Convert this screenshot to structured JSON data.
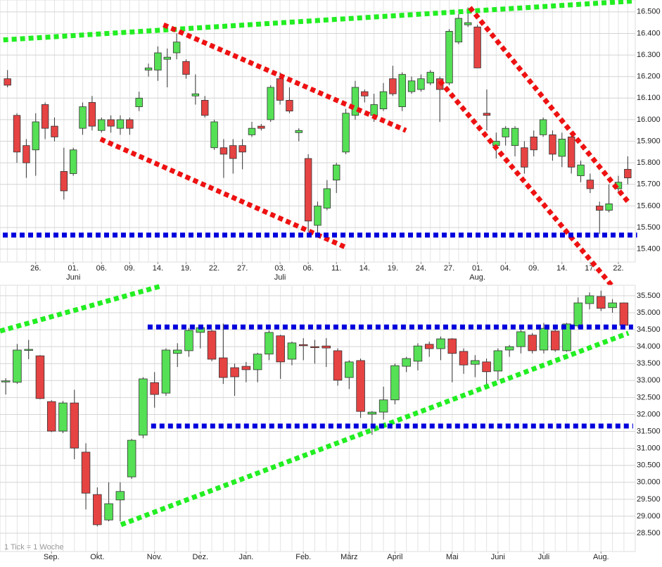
{
  "chart_data": [
    {
      "type": "candlestick",
      "grid": true,
      "up_color": "#55e055",
      "down_color": "#e64343",
      "categories": [
        null,
        null,
        null,
        "26.",
        null,
        null,
        null,
        "01.",
        null,
        null,
        "06.",
        null,
        null,
        "09.",
        null,
        null,
        "14.",
        null,
        null,
        "19.",
        null,
        null,
        "22.",
        null,
        null,
        "27.",
        null,
        null,
        null,
        "03.",
        null,
        null,
        "06.",
        null,
        null,
        "11.",
        null,
        null,
        "14.",
        null,
        null,
        "19.",
        null,
        null,
        "24.",
        null,
        null,
        "27.",
        null,
        null,
        "01.",
        null,
        null,
        "04.",
        null,
        null,
        "09.",
        null,
        null,
        "14.",
        null,
        null,
        "17.",
        null,
        null,
        "22.",
        null
      ],
      "months": [
        null,
        null,
        null,
        null,
        null,
        null,
        null,
        "Juni",
        null,
        null,
        null,
        null,
        null,
        null,
        null,
        null,
        null,
        null,
        null,
        null,
        null,
        null,
        null,
        null,
        null,
        null,
        null,
        null,
        null,
        "Juli",
        null,
        null,
        null,
        null,
        null,
        null,
        null,
        null,
        null,
        null,
        null,
        null,
        null,
        null,
        null,
        null,
        null,
        null,
        null,
        null,
        "Aug.",
        null,
        null,
        null,
        null,
        null,
        null,
        null,
        null,
        null,
        null,
        null,
        null,
        null,
        null,
        null,
        null
      ],
      "open": [
        16.19,
        16.02,
        15.88,
        15.86,
        16.07,
        15.97,
        15.76,
        15.75,
        15.96,
        16.08,
        15.95,
        16.0,
        15.96,
        16.0,
        16.06,
        16.23,
        16.23,
        16.28,
        16.31,
        16.27,
        16.11,
        16.09,
        15.87,
        15.87,
        15.88,
        15.88,
        15.93,
        15.97,
        16.0,
        16.19,
        16.09,
        15.94,
        15.82,
        15.51,
        15.59,
        15.72,
        15.85,
        16.02,
        16.13,
        16.02,
        16.05,
        16.19,
        16.06,
        16.13,
        16.14,
        16.17,
        16.19,
        16.17,
        16.36,
        16.44,
        16.43,
        16.03,
        15.88,
        15.92,
        15.88,
        15.87,
        15.92,
        15.93,
        15.93,
        15.83,
        15.92,
        15.74,
        15.72,
        15.6,
        15.58,
        15.68,
        15.77
      ],
      "high": [
        16.23,
        16.03,
        15.91,
        16.03,
        16.08,
        16.01,
        15.87,
        15.87,
        16.08,
        16.11,
        16.01,
        16.02,
        16.02,
        16.01,
        16.13,
        16.26,
        16.34,
        16.33,
        16.4,
        16.28,
        16.21,
        16.11,
        16.0,
        15.91,
        15.91,
        15.91,
        15.99,
        15.98,
        16.16,
        16.22,
        16.15,
        15.96,
        15.84,
        15.62,
        15.72,
        15.8,
        16.05,
        16.18,
        16.14,
        16.12,
        16.17,
        16.25,
        16.22,
        16.2,
        16.21,
        16.23,
        16.2,
        16.42,
        16.49,
        16.52,
        16.44,
        16.14,
        15.94,
        15.97,
        15.97,
        15.9,
        15.95,
        16.01,
        15.95,
        15.94,
        15.93,
        15.81,
        15.75,
        15.62,
        15.7,
        15.74,
        15.83
      ],
      "low": [
        16.15,
        15.8,
        15.73,
        15.74,
        15.91,
        15.9,
        15.63,
        15.74,
        15.93,
        15.95,
        15.94,
        15.94,
        15.93,
        15.93,
        16.04,
        16.2,
        16.18,
        16.15,
        16.28,
        16.19,
        16.07,
        16.01,
        15.86,
        15.73,
        15.75,
        15.77,
        15.92,
        15.95,
        15.99,
        16.07,
        16.03,
        15.9,
        15.48,
        15.47,
        15.58,
        15.66,
        15.84,
        16.0,
        16.08,
        15.99,
        16.04,
        16.11,
        16.04,
        16.12,
        16.13,
        16.16,
        15.99,
        16.16,
        16.35,
        16.43,
        16.24,
        15.95,
        15.82,
        15.88,
        15.83,
        15.75,
        15.83,
        15.92,
        15.81,
        15.78,
        15.75,
        15.71,
        15.66,
        15.47,
        15.57,
        15.66,
        15.7
      ],
      "close": [
        16.16,
        15.85,
        15.8,
        15.99,
        15.96,
        15.92,
        15.67,
        15.86,
        16.06,
        15.97,
        16.0,
        15.97,
        16.0,
        15.96,
        16.1,
        16.24,
        16.31,
        16.29,
        16.36,
        16.21,
        16.12,
        16.02,
        15.99,
        15.84,
        15.82,
        15.85,
        15.96,
        15.96,
        16.15,
        16.09,
        16.04,
        15.95,
        15.53,
        15.6,
        15.68,
        15.79,
        16.03,
        16.15,
        16.11,
        16.07,
        16.13,
        16.12,
        16.21,
        16.18,
        16.19,
        16.22,
        16.14,
        16.41,
        16.47,
        16.45,
        16.24,
        16.02,
        15.9,
        15.96,
        15.96,
        15.78,
        15.86,
        16.0,
        15.84,
        15.91,
        15.78,
        15.79,
        15.68,
        15.58,
        15.61,
        15.71,
        15.73
      ],
      "ylim": [
        15.34,
        16.555
      ],
      "yticks": [
        {
          "value": 15.4,
          "label": "15.400"
        },
        {
          "value": 15.5,
          "label": "15.500"
        },
        {
          "value": 15.6,
          "label": "15.600"
        },
        {
          "value": 15.7,
          "label": "15.700"
        },
        {
          "value": 15.8,
          "label": "15.800"
        },
        {
          "value": 15.9,
          "label": "15.900"
        },
        {
          "value": 16.0,
          "label": "16.000"
        },
        {
          "value": 16.1,
          "label": "16.100"
        },
        {
          "value": 16.2,
          "label": "16.200"
        },
        {
          "value": 16.3,
          "label": "16.300"
        },
        {
          "value": 16.4,
          "label": "16.400"
        },
        {
          "value": 16.5,
          "label": "16.500"
        }
      ],
      "trendlines": [
        {
          "color": "#22ee22",
          "x": [
            -0.45,
            66.5
          ],
          "y": [
            16.37,
            16.55
          ]
        },
        {
          "color": "#ee1111",
          "x": [
            16.6,
            42.4
          ],
          "y": [
            16.44,
            15.95
          ]
        },
        {
          "color": "#ee1111",
          "x": [
            9.9,
            35.9
          ],
          "y": [
            15.91,
            15.41
          ]
        },
        {
          "color": "#ee1111",
          "x": [
            49.2,
            66.2
          ],
          "y": [
            16.52,
            15.61
          ]
        },
        {
          "color": "#ee1111",
          "x": [
            46,
            64.7
          ],
          "y": [
            16.18,
            15.21
          ]
        },
        {
          "color": "#0000dd",
          "x": [
            -0.5,
            67
          ],
          "y": [
            15.465,
            15.465
          ]
        }
      ]
    },
    {
      "type": "candlestick",
      "grid": true,
      "up_color": "#55e055",
      "down_color": "#e64343",
      "note": "1 Tick = 1 Woche",
      "categories": [
        null,
        null,
        null,
        null,
        "Sep.",
        null,
        null,
        null,
        "Okt.",
        null,
        null,
        null,
        null,
        "Nov.",
        null,
        null,
        null,
        "Dez.",
        null,
        null,
        null,
        "Jan.",
        null,
        null,
        null,
        null,
        "Feb.",
        null,
        null,
        null,
        "März",
        null,
        null,
        null,
        "April",
        null,
        null,
        null,
        null,
        "Mai",
        null,
        null,
        null,
        "Juni",
        null,
        null,
        null,
        "Juli",
        null,
        null,
        null,
        null,
        "Aug.",
        null,
        null
      ],
      "open": [
        32.96,
        32.95,
        33.9,
        33.73,
        32.38,
        31.51,
        32.34,
        30.89,
        29.64,
        28.89,
        29.48,
        30.16,
        31.39,
        32.94,
        32.63,
        33.8,
        33.88,
        34.42,
        34.46,
        33.67,
        33.38,
        33.42,
        33.32,
        33.78,
        34.32,
        33.63,
        34.06,
        34.0,
        34.02,
        33.88,
        33.09,
        33.59,
        32.01,
        32.07,
        32.43,
        33.42,
        33.57,
        34.07,
        33.94,
        34.23,
        33.86,
        33.48,
        33.55,
        33.28,
        33.9,
        34.0,
        34.34,
        33.9,
        34.46,
        33.88,
        34.61,
        35.27,
        35.48,
        35.15,
        35.29
      ],
      "high": [
        33.07,
        34.08,
        34.2,
        33.75,
        32.42,
        32.4,
        32.73,
        31.15,
        29.85,
        30.0,
        30.0,
        31.28,
        33.1,
        33.25,
        33.95,
        34.1,
        34.55,
        34.6,
        34.5,
        34.68,
        33.5,
        33.55,
        33.82,
        34.48,
        34.35,
        34.15,
        34.25,
        34.2,
        34.25,
        33.95,
        33.6,
        33.65,
        32.1,
        32.82,
        33.5,
        33.7,
        34.1,
        34.15,
        34.3,
        34.25,
        33.95,
        33.75,
        33.65,
        33.95,
        34.05,
        34.5,
        34.4,
        34.7,
        34.5,
        34.7,
        35.45,
        35.6,
        35.65,
        35.4,
        35.3
      ],
      "low": [
        32.59,
        32.9,
        33.63,
        32.45,
        31.48,
        31.45,
        30.68,
        29.2,
        28.7,
        28.85,
        28.85,
        30.1,
        31.3,
        32.2,
        32.55,
        33.4,
        33.7,
        33.95,
        33.57,
        32.9,
        32.55,
        32.95,
        32.95,
        33.6,
        33.05,
        33.45,
        33.6,
        33.5,
        33.4,
        32.85,
        32.75,
        31.9,
        31.4,
        31.85,
        32.3,
        33.25,
        33.3,
        33.7,
        33.6,
        32.95,
        33.2,
        33.1,
        32.75,
        33.0,
        33.7,
        33.8,
        33.8,
        33.8,
        33.85,
        33.85,
        34.55,
        35.1,
        35.05,
        35.0,
        34.55
      ],
      "close": [
        32.99,
        33.9,
        33.92,
        32.47,
        31.51,
        32.34,
        31.01,
        29.68,
        28.75,
        29.37,
        29.73,
        31.24,
        33.05,
        32.59,
        33.9,
        33.9,
        34.48,
        34.56,
        33.63,
        33.09,
        33.11,
        33.32,
        33.78,
        34.42,
        33.55,
        34.11,
        34.04,
        33.98,
        33.96,
        33.01,
        33.55,
        32.09,
        32.07,
        32.43,
        33.44,
        33.65,
        34.02,
        33.94,
        34.23,
        33.8,
        33.46,
        33.59,
        33.26,
        33.88,
        34.0,
        34.44,
        33.88,
        34.54,
        33.9,
        34.67,
        35.29,
        35.5,
        35.13,
        35.29,
        34.63
      ],
      "ylim": [
        27.96,
        35.81
      ],
      "yticks": [
        {
          "value": 28.5,
          "label": "28.500"
        },
        {
          "value": 29,
          "label": "29.000"
        },
        {
          "value": 29.5,
          "label": "29.500"
        },
        {
          "value": 30,
          "label": "30.000"
        },
        {
          "value": 30.5,
          "label": "30.500"
        },
        {
          "value": 31,
          "label": "31.000"
        },
        {
          "value": 31.5,
          "label": "31.500"
        },
        {
          "value": 32,
          "label": "32.000"
        },
        {
          "value": 32.5,
          "label": "32.500"
        },
        {
          "value": 33,
          "label": "33.000"
        },
        {
          "value": 33.5,
          "label": "33.500"
        },
        {
          "value": 34,
          "label": "34.000"
        },
        {
          "value": 34.5,
          "label": "34.500"
        },
        {
          "value": 35,
          "label": "35.000"
        },
        {
          "value": 35.5,
          "label": "35.500"
        }
      ],
      "trendlines": [
        {
          "color": "#22ee22",
          "x": [
            -0.49,
            13.6
          ],
          "y": [
            34.46,
            35.79
          ]
        },
        {
          "color": "#22ee22",
          "x": [
            10.07,
            54.4
          ],
          "y": [
            28.75,
            34.4
          ]
        },
        {
          "color": "#0000dd",
          "x": [
            12.4,
            54.8
          ],
          "y": [
            34.58,
            34.58
          ]
        },
        {
          "color": "#0000dd",
          "x": [
            12.7,
            54.8
          ],
          "y": [
            31.66,
            31.66
          ]
        }
      ]
    }
  ]
}
